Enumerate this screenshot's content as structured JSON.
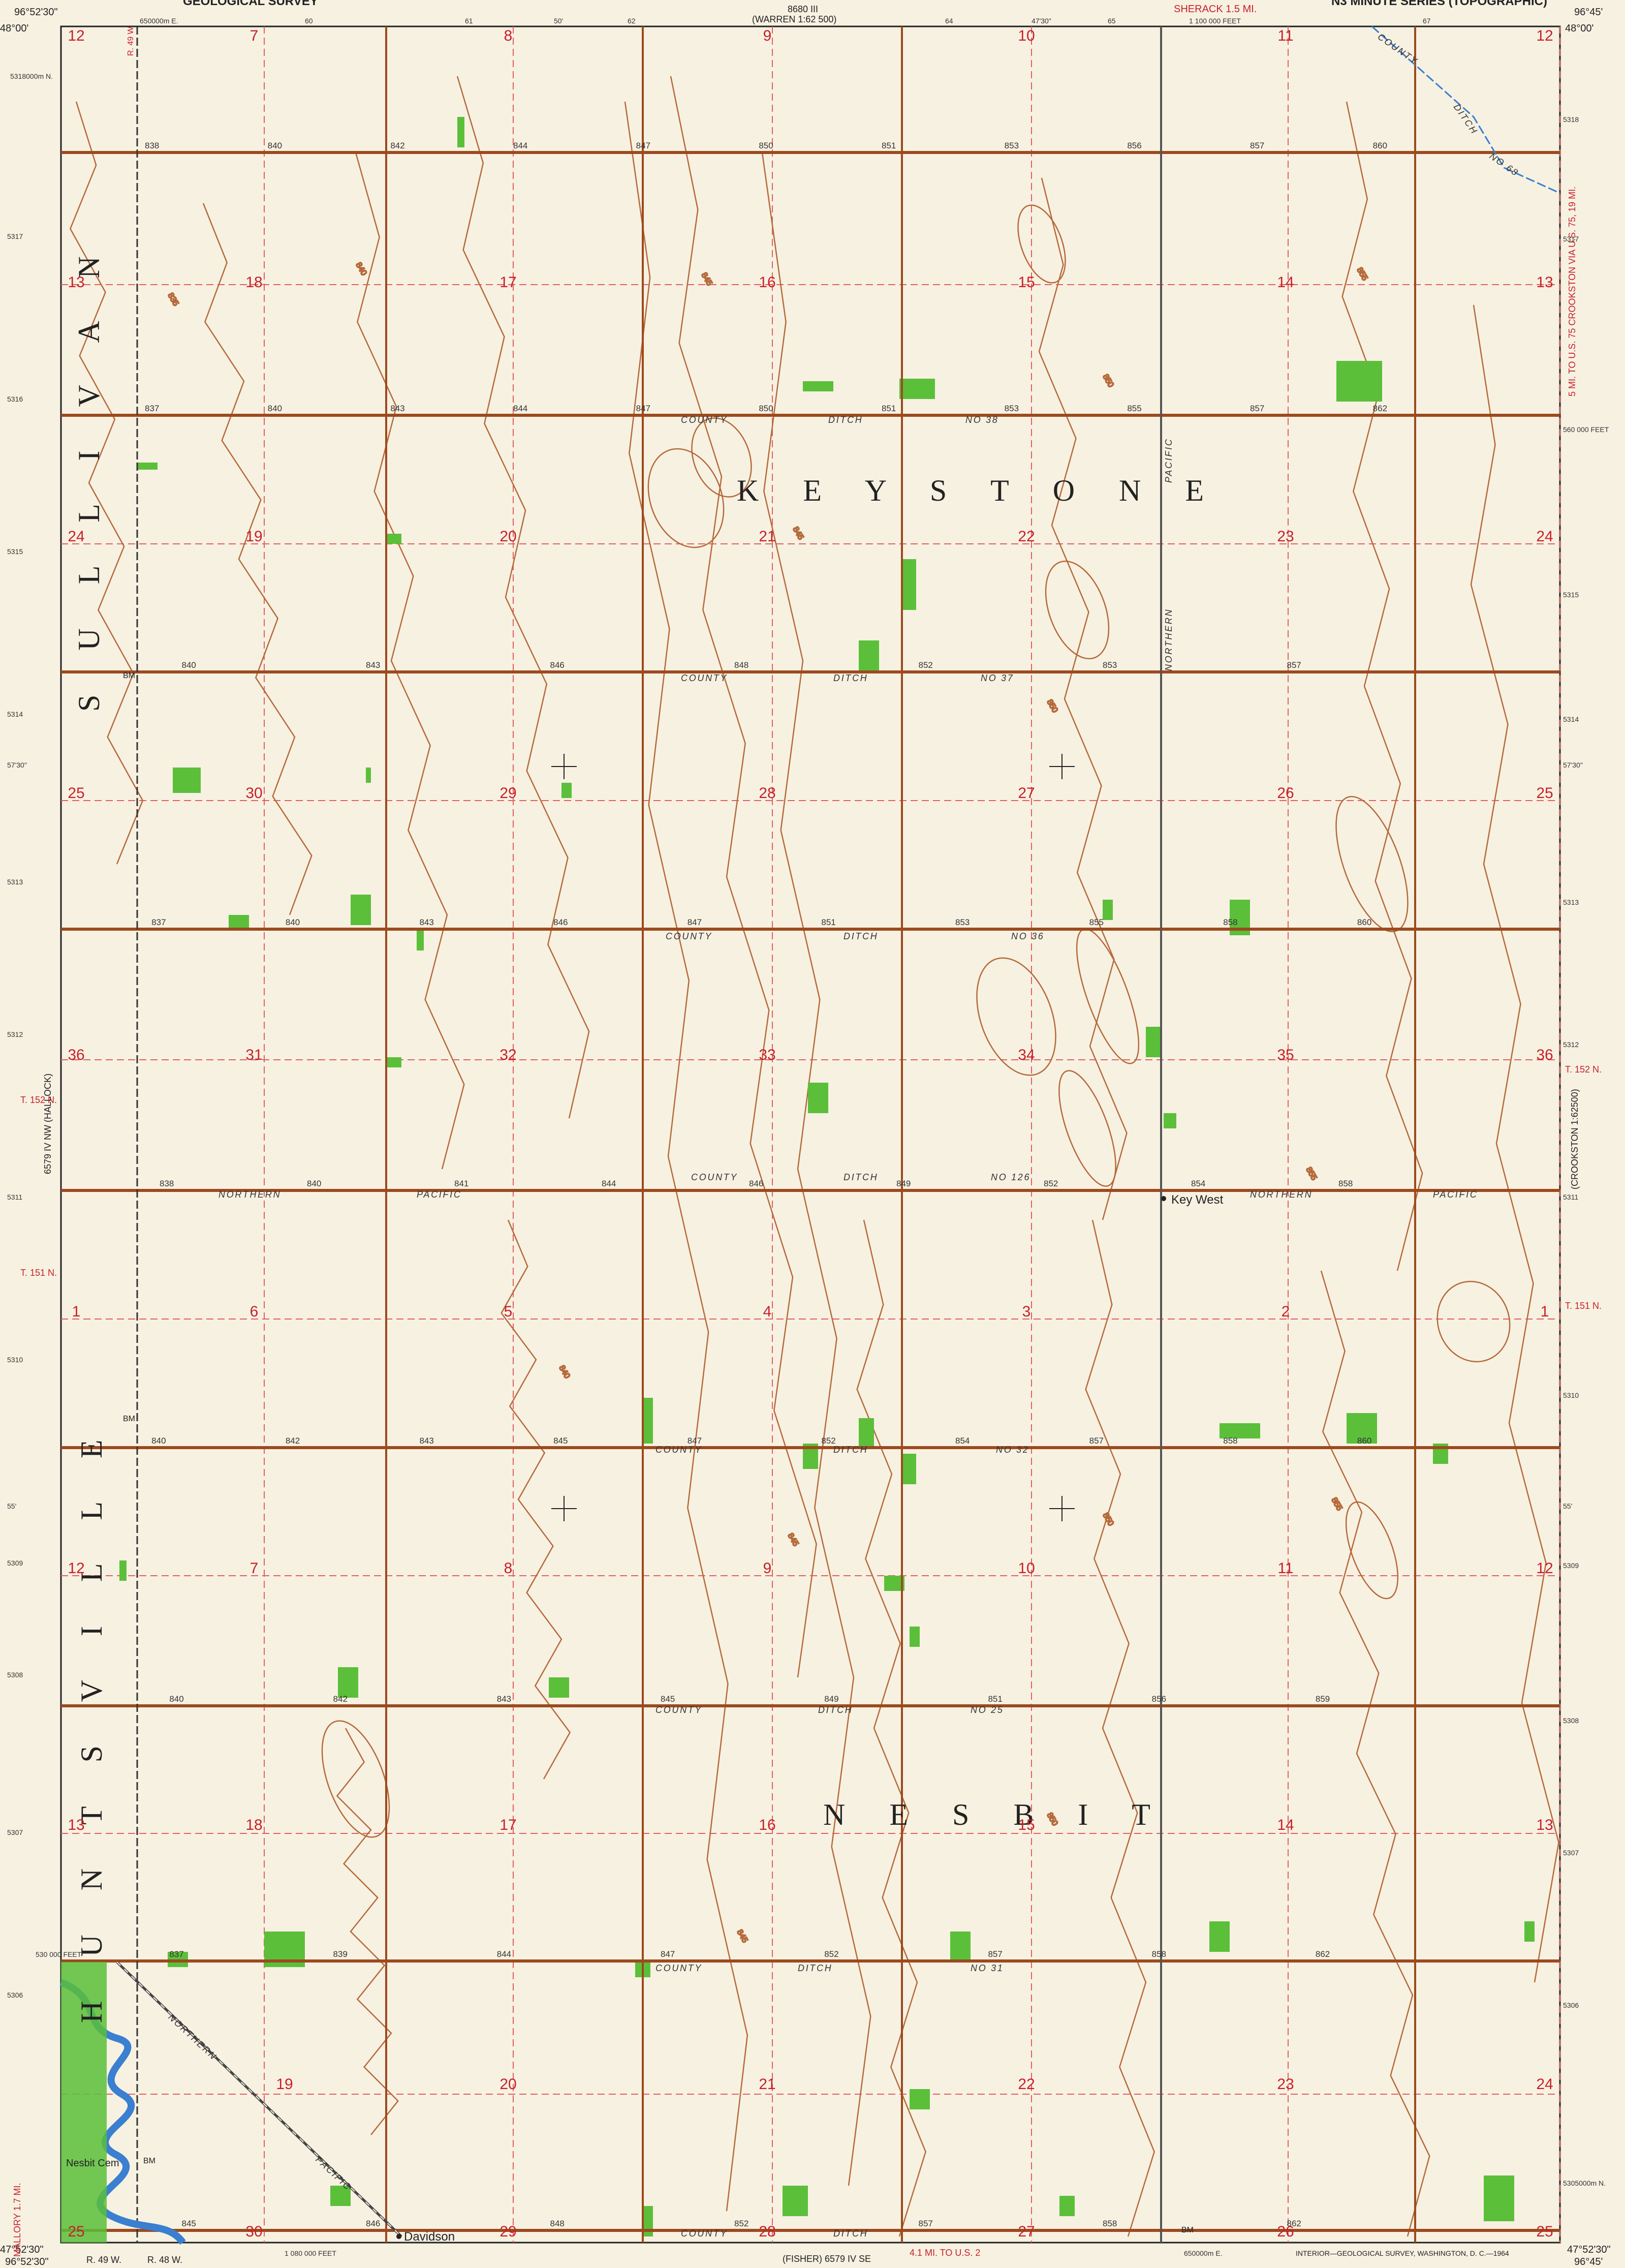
{
  "header": {
    "top_left": "GEOLOGICAL SURVEY",
    "top_right": "N3 MINUTE SERIES (TOPOGRAPHIC)",
    "sheet_ref_top": "8680 III (WARREN 1:62500)",
    "sheet_ref_top_prefix": "8680 III",
    "sheet_ref_top_name": "(WARREN 1:62 500)",
    "sheack": "SHERACK 1.5 MI.",
    "top_ticks": [
      "650000m E.",
      "60",
      "61",
      "50'",
      "62",
      "63",
      "64",
      "47'30\"",
      "65",
      "1 100 000 FEET",
      "67"
    ]
  },
  "corners": {
    "top_left_lon": "96°52'30\"",
    "top_left_lat": "48°00'",
    "top_right_lon": "96°45'",
    "top_right_lat": "48°00'",
    "bottom_left_lat": "47°52'30\"",
    "bottom_left_lon": "96°52'30\"",
    "bottom_right_lat": "47°52'30\"",
    "bottom_right_lon": "96°45'"
  },
  "margin_labels": {
    "left_easting_top": "5318000m N.",
    "left_ticks": [
      "5317",
      "5316",
      "5315",
      "5314",
      "57'30\"",
      "5313",
      "5312",
      "5311",
      "5310",
      "55'",
      "5309",
      "5308",
      "5307",
      "5306"
    ],
    "right_ticks": [
      "5318",
      "5317",
      "560 000 FEET",
      "5315",
      "5314",
      "57'30\"",
      "5313",
      "5312",
      "5311",
      "5310",
      "55'",
      "5309",
      "5308",
      "5307",
      "5306",
      "5305000m N."
    ],
    "feet_left_bottom": "530 000 FEET",
    "range_labels": [
      "R. 49 W.",
      "R. 48 W."
    ],
    "t152": "T. 152 N.",
    "t151": "T. 151 N.",
    "right_side_sheet": "(CROOKSTON 1:62500)",
    "left_side_sheet": "6579 IV NW (HALLOCK)",
    "via_note": "5 MI. TO U.S. 75 CROOKSTON VIA U.S. 75, 19 MI.",
    "bottom_sheet": "(FISHER) 6579 IV SE",
    "bottom_via": "4.1 MI. TO U.S. 2",
    "mallory": "MALLORY 1.7 MI.",
    "bottom_ticks": [
      "60",
      "1 080 000 FEET",
      "61",
      "50'",
      "63",
      "64",
      "47'30\"",
      "65",
      "650000m E."
    ],
    "credit": "INTERIOR—GEOLOGICAL SURVEY, WASHINGTON, D. C.—1964"
  },
  "townships": {
    "keystone": "K E Y S T O N E",
    "nesbit": "N E S B I T",
    "sullivan": "S U L L I V A N",
    "huntsville": "H U N T S V I L L E"
  },
  "places": {
    "key_west": "Key West",
    "davidson": "Davidson",
    "nesbit_cem": "Nesbit Cem",
    "bm": "BM"
  },
  "roads": {
    "county": "COUNTY",
    "ditch": "DITCH",
    "northern": "NORTHERN",
    "pacific": "PACIFIC",
    "ditch_labels": [
      "NO 38",
      "NO 37",
      "NO 36",
      "NO 126",
      "NO 32",
      "NO 25",
      "NO 31",
      "NO 68"
    ]
  },
  "sections": {
    "row1": [
      "12",
      "7",
      "8",
      "9",
      "10",
      "11",
      "12"
    ],
    "row2": [
      "13",
      "18",
      "17",
      "16",
      "15",
      "14",
      "13"
    ],
    "row3": [
      "24",
      "19",
      "20",
      "21",
      "22",
      "23",
      "24"
    ],
    "row4": [
      "25",
      "30",
      "29",
      "28",
      "27",
      "26",
      "25"
    ],
    "row5": [
      "36",
      "31",
      "32",
      "33",
      "34",
      "35",
      "36"
    ],
    "row6": [
      "1",
      "6",
      "5",
      "4",
      "3",
      "2",
      "1"
    ],
    "row7": [
      "12",
      "7",
      "8",
      "9",
      "10",
      "11",
      "12"
    ],
    "row8": [
      "13",
      "18",
      "17",
      "16",
      "15",
      "14",
      "13"
    ],
    "row9": [
      "19",
      "20",
      "21",
      "22",
      "23",
      "24"
    ],
    "row10": [
      "25",
      "30",
      "29",
      "28",
      "27",
      "26",
      "25"
    ]
  },
  "elevations": {
    "road_row1": [
      "838",
      "840",
      "842",
      "844",
      "847",
      "850",
      "851",
      "853",
      "856",
      "857",
      "860"
    ],
    "road_row2": [
      "837",
      "840",
      "843",
      "844",
      "847",
      "850",
      "851",
      "853",
      "855",
      "857",
      "862"
    ],
    "road_row3": [
      "840",
      "843",
      "846",
      "848",
      "852",
      "853",
      "857"
    ],
    "road_row4": [
      "837",
      "840",
      "843",
      "846",
      "847",
      "851",
      "853",
      "855",
      "858",
      "860"
    ],
    "road_row5": [
      "838",
      "840",
      "841",
      "844",
      "846",
      "849",
      "852",
      "854",
      "858"
    ],
    "road_row6": [
      "840",
      "842",
      "843",
      "845",
      "847",
      "852",
      "854",
      "857",
      "858",
      "860"
    ],
    "road_row7": [
      "840",
      "842",
      "843",
      "845",
      "849",
      "851",
      "856",
      "859"
    ],
    "road_row8": [
      "837",
      "839",
      "844",
      "847",
      "852",
      "857",
      "858",
      "862"
    ],
    "road_row9": [
      "845",
      "846",
      "848",
      "852",
      "857",
      "858",
      "862"
    ],
    "contours": [
      "835",
      "840",
      "845",
      "850",
      "855"
    ]
  },
  "colors": {
    "paper": "#f7f1e2",
    "section_red": "#c8202a",
    "grid_red": "#e06060",
    "road": "#9c4a1e",
    "contour": "#b56a3a",
    "woods": "#5bbf3a",
    "water": "#3a7fd0",
    "black": "#222222"
  }
}
